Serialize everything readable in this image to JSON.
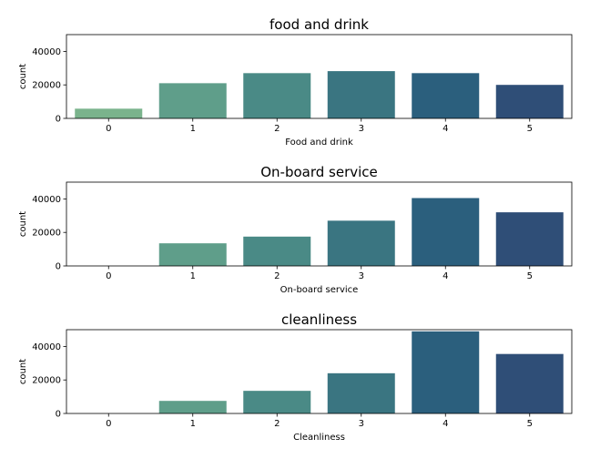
{
  "chart_data": [
    {
      "type": "bar",
      "title": "food and drink",
      "xlabel": "Food and drink",
      "ylabel": "count",
      "categories": [
        "0",
        "1",
        "2",
        "3",
        "4",
        "5"
      ],
      "values": [
        5800,
        21000,
        27000,
        28200,
        27000,
        20000
      ],
      "ylim": [
        0,
        50000
      ],
      "yticks": [
        0,
        20000,
        40000
      ],
      "ytick_labels": [
        "0",
        "20000",
        "40000"
      ],
      "colors": [
        "#7ab38c",
        "#5f9e8a",
        "#4a8a86",
        "#3a7581",
        "#2b5f7d",
        "#2f4e77"
      ],
      "grid": false,
      "legend": "none"
    },
    {
      "type": "bar",
      "title": "On-board service",
      "xlabel": "On-board service",
      "ylabel": "count",
      "categories": [
        "0",
        "1",
        "2",
        "3",
        "4",
        "5"
      ],
      "values": [
        0,
        13500,
        17500,
        27000,
        40500,
        32000
      ],
      "ylim": [
        0,
        50000
      ],
      "yticks": [
        0,
        20000,
        40000
      ],
      "ytick_labels": [
        "0",
        "20000",
        "40000"
      ],
      "colors": [
        "#7ab38c",
        "#5f9e8a",
        "#4a8a86",
        "#3a7581",
        "#2b5f7d",
        "#2f4e77"
      ],
      "grid": false,
      "legend": "none"
    },
    {
      "type": "bar",
      "title": "cleanliness",
      "xlabel": "Cleanliness",
      "ylabel": "count",
      "categories": [
        "0",
        "1",
        "2",
        "3",
        "4",
        "5"
      ],
      "values": [
        0,
        7500,
        13500,
        24000,
        49000,
        35500
      ],
      "ylim": [
        0,
        50000
      ],
      "yticks": [
        0,
        20000,
        40000
      ],
      "ytick_labels": [
        "0",
        "20000",
        "40000"
      ],
      "colors": [
        "#7ab38c",
        "#5f9e8a",
        "#4a8a86",
        "#3a7581",
        "#2b5f7d",
        "#2f4e77"
      ],
      "grid": false,
      "legend": "none"
    }
  ]
}
